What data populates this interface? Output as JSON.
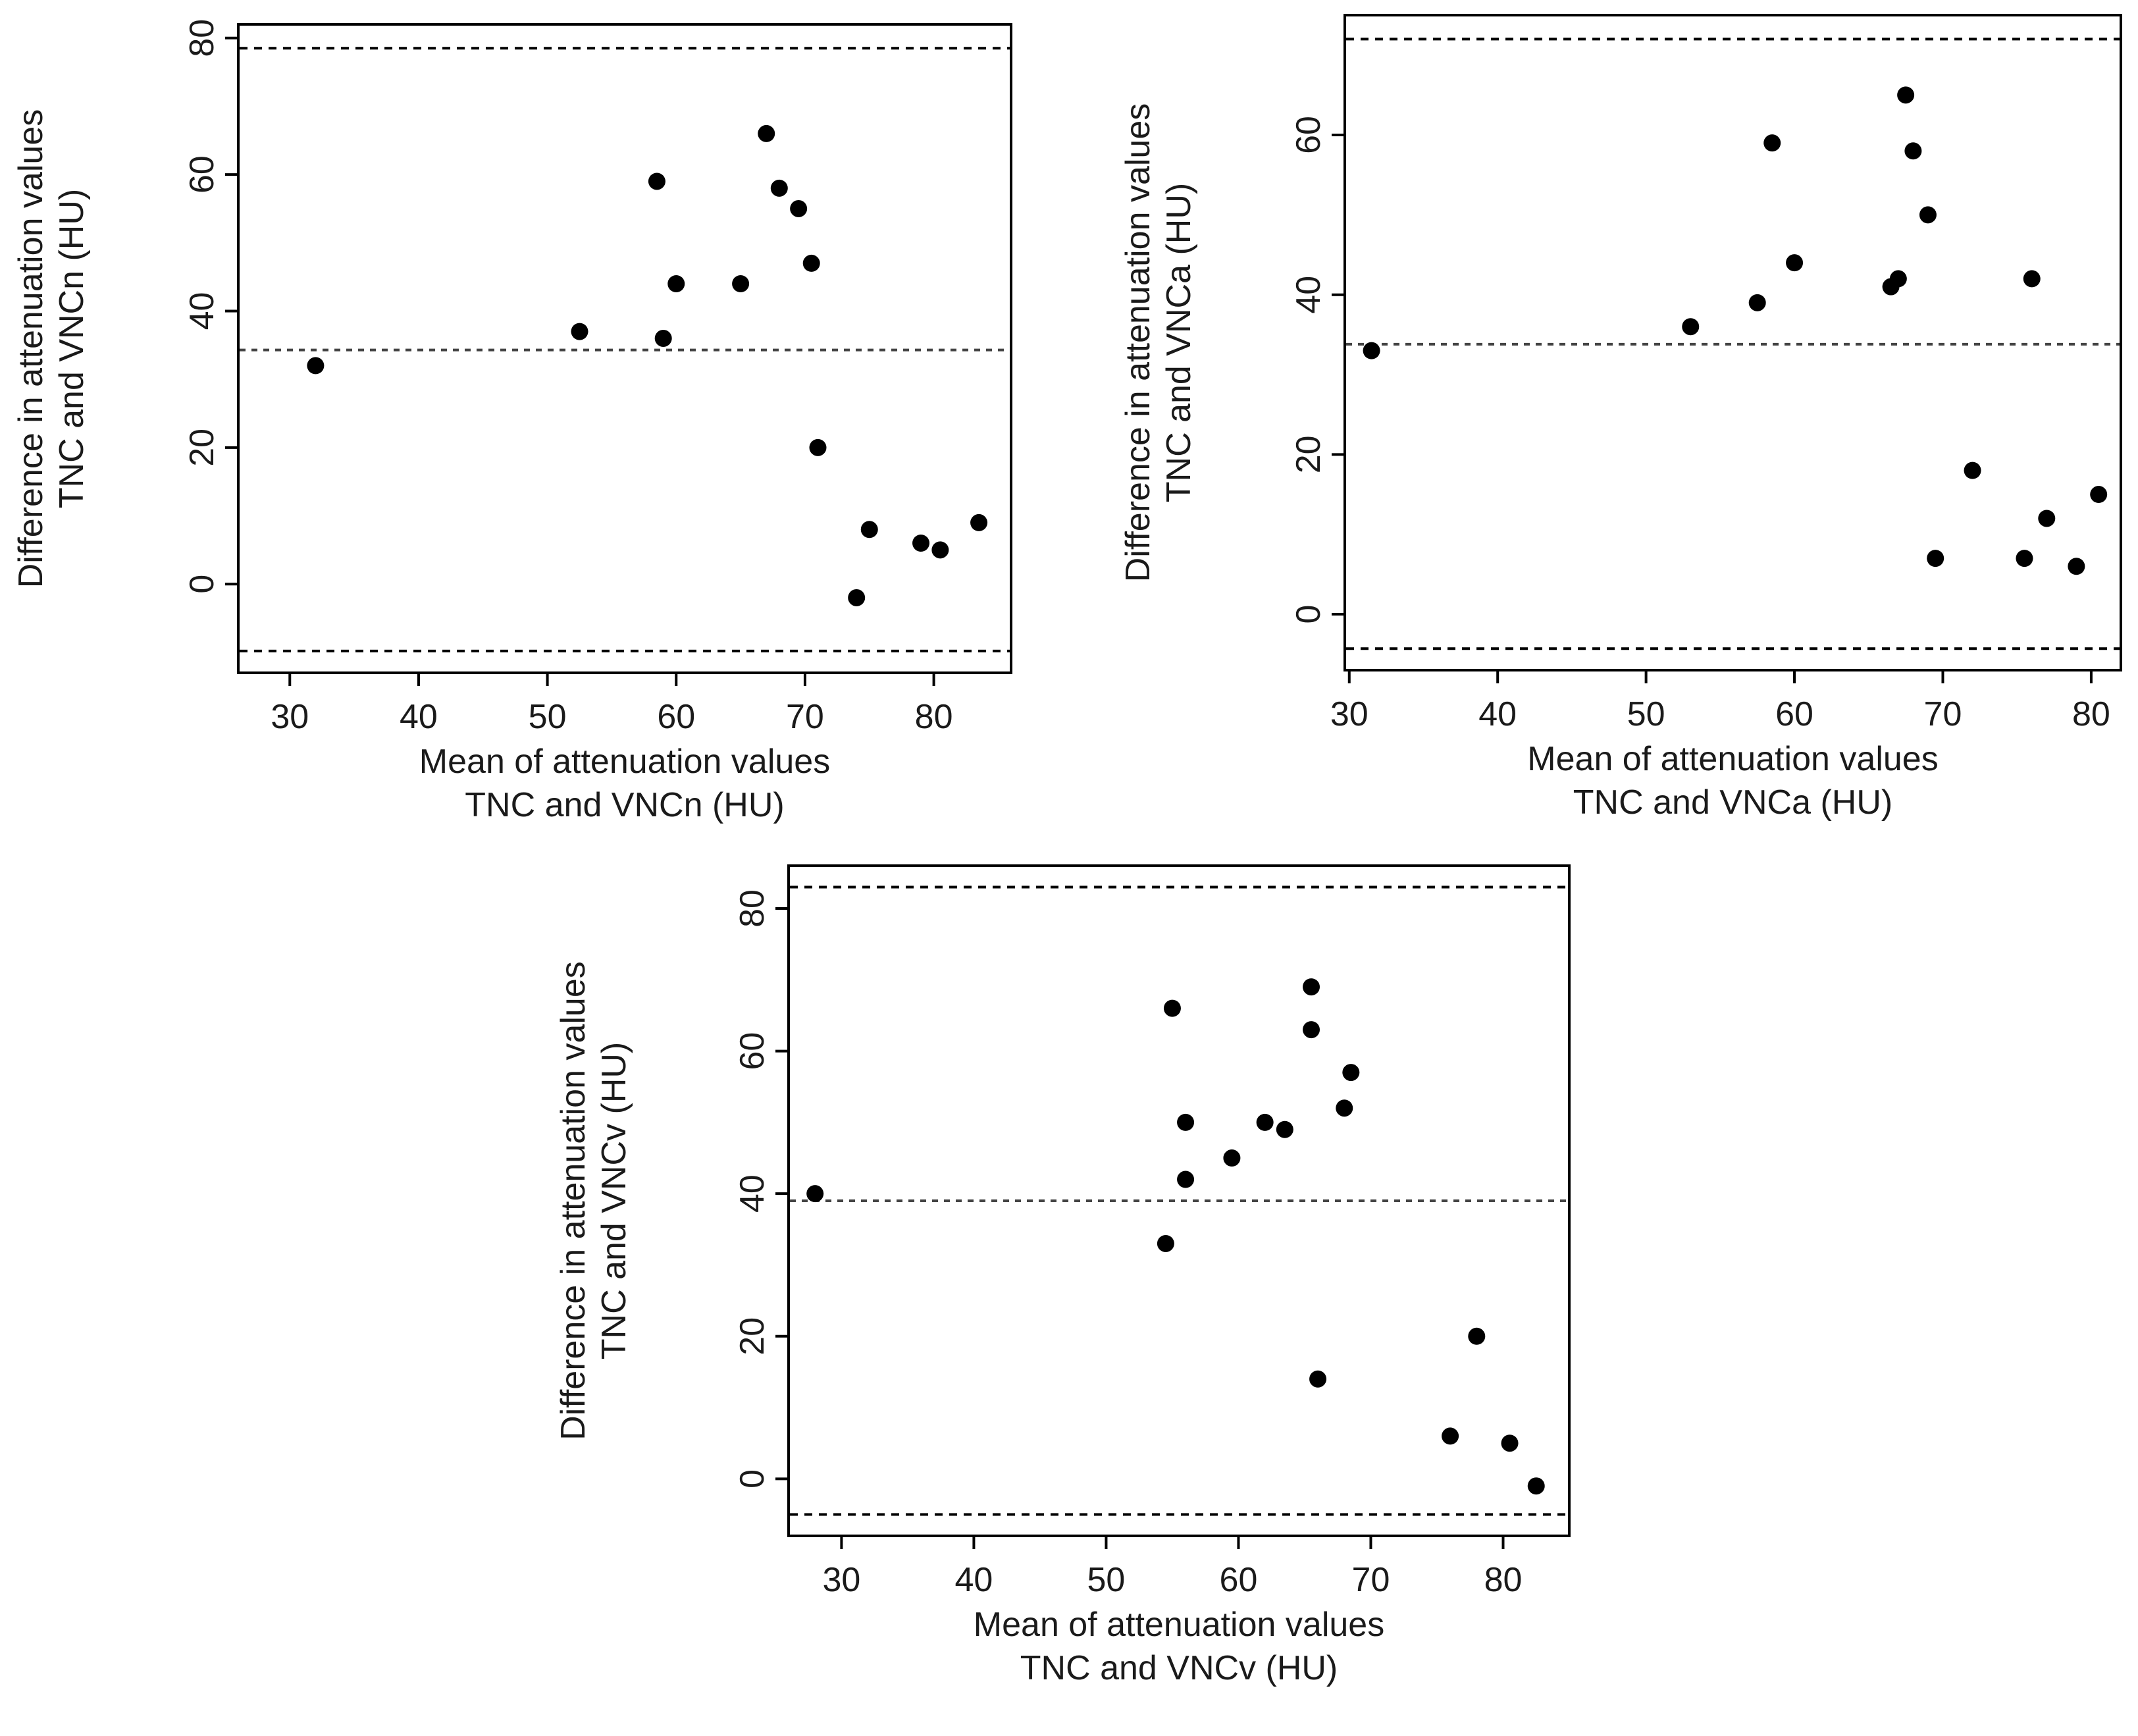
{
  "chart_data": [
    {
      "type": "scatter",
      "title": "",
      "xlabel": [
        "Mean of attenuation values",
        "TNC and VNCn (HU)"
      ],
      "ylabel": [
        "Difference in attenuation values",
        "TNC and VNCn (HU)"
      ],
      "xlim": [
        26,
        86
      ],
      "ylim": [
        -13,
        82
      ],
      "xticks": [
        30,
        40,
        50,
        60,
        70,
        80
      ],
      "yticks": [
        0,
        20,
        40,
        60,
        80
      ],
      "reference_lines": {
        "upper": 78.5,
        "mean": 34.3,
        "lower": -9.8
      },
      "points": [
        {
          "x": 32,
          "y": 32
        },
        {
          "x": 52.5,
          "y": 37
        },
        {
          "x": 58.5,
          "y": 59
        },
        {
          "x": 59,
          "y": 36
        },
        {
          "x": 60,
          "y": 44
        },
        {
          "x": 65,
          "y": 44
        },
        {
          "x": 67,
          "y": 66
        },
        {
          "x": 68,
          "y": 58
        },
        {
          "x": 69.5,
          "y": 55
        },
        {
          "x": 70.5,
          "y": 47
        },
        {
          "x": 71,
          "y": 20
        },
        {
          "x": 74,
          "y": -2
        },
        {
          "x": 75,
          "y": 8
        },
        {
          "x": 79,
          "y": 6
        },
        {
          "x": 80.5,
          "y": 5
        },
        {
          "x": 83.5,
          "y": 9
        }
      ]
    },
    {
      "type": "scatter",
      "title": "",
      "xlabel": [
        "Mean of attenuation values",
        "TNC and VNCa (HU)"
      ],
      "ylabel": [
        "Difference in attenuation values",
        "TNC and VNCa (HU)"
      ],
      "xlim": [
        29.7,
        82
      ],
      "ylim": [
        -7,
        75
      ],
      "xticks": [
        30,
        40,
        50,
        60,
        70,
        80
      ],
      "yticks": [
        0,
        20,
        40,
        60
      ],
      "reference_lines": {
        "upper": 72,
        "mean": 33.8,
        "lower": -4.3
      },
      "points": [
        {
          "x": 31.5,
          "y": 33
        },
        {
          "x": 53,
          "y": 36
        },
        {
          "x": 57.5,
          "y": 39
        },
        {
          "x": 58.5,
          "y": 59
        },
        {
          "x": 60,
          "y": 44
        },
        {
          "x": 66.5,
          "y": 41
        },
        {
          "x": 67,
          "y": 42
        },
        {
          "x": 67.5,
          "y": 65
        },
        {
          "x": 68,
          "y": 58
        },
        {
          "x": 69,
          "y": 50
        },
        {
          "x": 69.5,
          "y": 7
        },
        {
          "x": 72,
          "y": 18
        },
        {
          "x": 75.5,
          "y": 7
        },
        {
          "x": 76,
          "y": 42
        },
        {
          "x": 77,
          "y": 12
        },
        {
          "x": 79,
          "y": 6
        },
        {
          "x": 80.5,
          "y": 15
        }
      ]
    },
    {
      "type": "scatter",
      "title": "",
      "xlabel": [
        "Mean of attenuation values",
        "TNC and VNCv (HU)"
      ],
      "ylabel": [
        "Difference in attenuation values",
        "TNC and VNCv (HU)"
      ],
      "xlim": [
        26,
        85
      ],
      "ylim": [
        -8,
        86
      ],
      "xticks": [
        30,
        40,
        50,
        60,
        70,
        80
      ],
      "yticks": [
        0,
        20,
        40,
        60,
        80
      ],
      "reference_lines": {
        "upper": 83,
        "mean": 39,
        "lower": -5
      },
      "points": [
        {
          "x": 28,
          "y": 40
        },
        {
          "x": 54.5,
          "y": 33
        },
        {
          "x": 55,
          "y": 66
        },
        {
          "x": 56,
          "y": 50
        },
        {
          "x": 56,
          "y": 42
        },
        {
          "x": 59.5,
          "y": 45
        },
        {
          "x": 62,
          "y": 50
        },
        {
          "x": 63.5,
          "y": 49
        },
        {
          "x": 65.5,
          "y": 69
        },
        {
          "x": 65.5,
          "y": 63
        },
        {
          "x": 66,
          "y": 14
        },
        {
          "x": 68,
          "y": 52
        },
        {
          "x": 68.5,
          "y": 57
        },
        {
          "x": 76,
          "y": 6
        },
        {
          "x": 78,
          "y": 20
        },
        {
          "x": 80.5,
          "y": 5
        },
        {
          "x": 82.5,
          "y": -1
        }
      ]
    }
  ]
}
